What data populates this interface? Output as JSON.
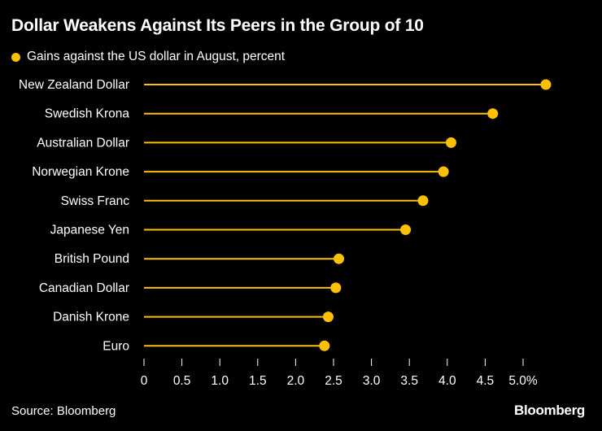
{
  "title": "Dollar Weakens Against Its Peers in the Group of 10",
  "legend": {
    "label": "Gains against the US dollar in August, percent"
  },
  "source": "Source: Bloomberg",
  "brand": "Bloomberg",
  "colors": {
    "background": "#000000",
    "accent": "#ffc000",
    "text": "#ffffff"
  },
  "chart_data": {
    "type": "lollipop",
    "title": "Dollar Weakens Against Its Peers in the Group of 10",
    "series": [
      {
        "name": "Gains against the US dollar in August, percent"
      }
    ],
    "categories": [
      "New Zealand Dollar",
      "Swedish Krona",
      "Australian Dollar",
      "Norwegian Krone",
      "Swiss Franc",
      "Japanese Yen",
      "British Pound",
      "Canadian Dollar",
      "Danish Krone",
      "Euro"
    ],
    "values": [
      5.3,
      4.6,
      4.05,
      3.95,
      3.68,
      3.45,
      2.57,
      2.53,
      2.43,
      2.38
    ],
    "xlim": [
      0,
      5.3
    ],
    "xticks": [
      0,
      0.5,
      1.0,
      1.5,
      2.0,
      2.5,
      3.0,
      3.5,
      4.0,
      4.5,
      5.0
    ],
    "xtick_labels": [
      "0",
      "0.5",
      "1.0",
      "1.5",
      "2.0",
      "2.5",
      "3.0",
      "3.5",
      "4.0",
      "4.5",
      "5.0%"
    ],
    "grid": false
  }
}
